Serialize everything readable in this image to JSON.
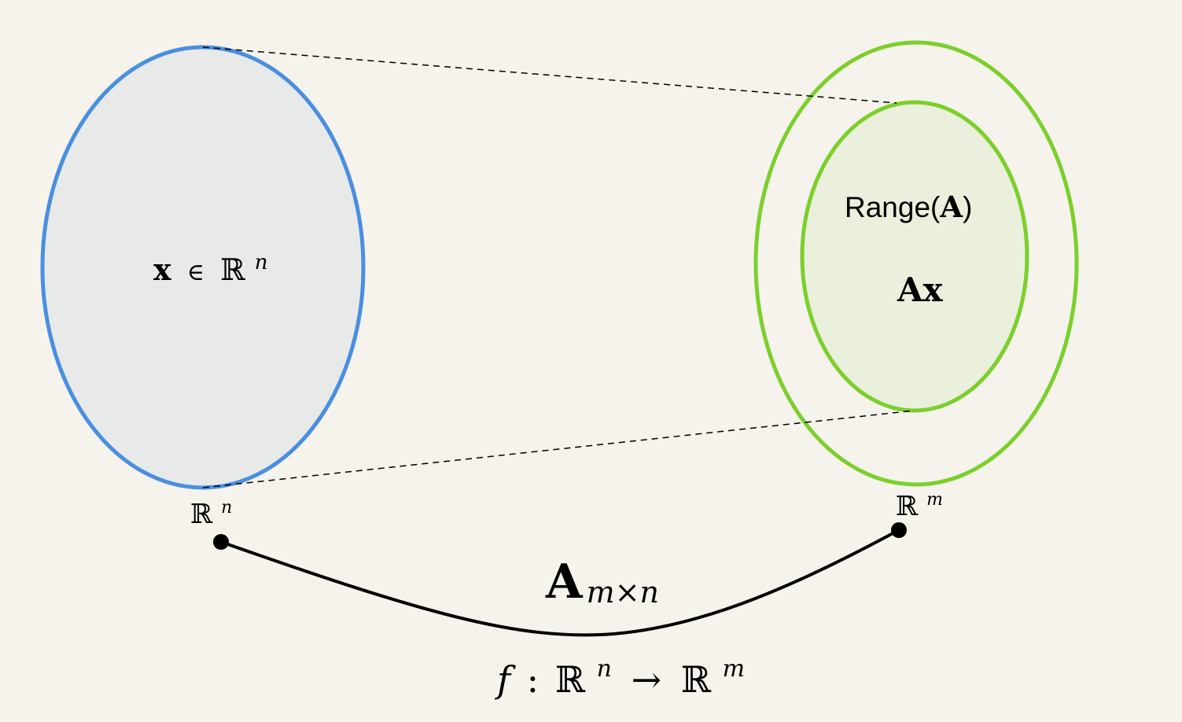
{
  "colors": {
    "background": "#f5f3ec",
    "domain_stroke": "#4a8fdf",
    "domain_fill": "#e8eae9",
    "codomain_stroke": "#7ccf2c",
    "range_fill": "#eaf0dc",
    "curve": "#000000",
    "dashed": "#000000"
  },
  "labels": {
    "domain_element": {
      "vec": "x",
      "in": "∈",
      "space": "ℝ",
      "exp": "n"
    },
    "domain_space": {
      "space": "ℝ",
      "exp": "n"
    },
    "codomain_space": {
      "space": "ℝ",
      "exp": "m"
    },
    "range": {
      "prefix": "Range(",
      "matrix": "A",
      "suffix": ")"
    },
    "image": "Ax",
    "matrix": {
      "symbol": "A",
      "dims": "m×n"
    },
    "function": {
      "f": "f",
      "colon": ":",
      "from_space": "ℝ",
      "from_exp": "n",
      "arrow": "→",
      "to_space": "ℝ",
      "to_exp": "m"
    }
  }
}
